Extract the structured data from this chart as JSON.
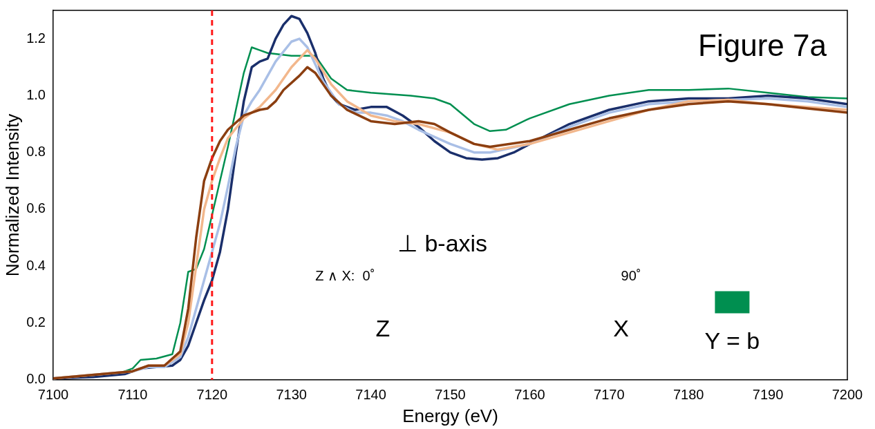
{
  "chart_data": {
    "type": "line",
    "title": "Figure 7a",
    "xlabel": "Energy (eV)",
    "ylabel": "Normalized Intensity",
    "xlim": [
      7100,
      7200
    ],
    "xticks": [
      7100,
      7110,
      7120,
      7130,
      7140,
      7150,
      7160,
      7170,
      7180,
      7190,
      7200
    ],
    "ylim": [
      0,
      1.3
    ],
    "yticks": [
      {
        "value": 0,
        "label": "0.0"
      },
      0.2,
      0.4,
      0.6,
      0.8,
      {
        "value": 1,
        "label": "1.0"
      },
      1.2
    ],
    "grid": false,
    "legend": "bottom right",
    "marker": "none",
    "line_style": "solid",
    "ref_lines": [
      {
        "axis": "x",
        "value": 7120,
        "color": "#ff1a1a",
        "line_style": "dashed"
      }
    ],
    "annotations": [
      "⊥ b-axis",
      "Z ∧ X:  0˚",
      "90˚",
      "Z",
      "X"
    ],
    "series": [
      {
        "color": "#8b3e10",
        "x": [
          7100,
          7110,
          7112,
          7114,
          7116,
          7117,
          7118,
          7119,
          7120,
          7121,
          7122,
          7124,
          7126,
          7127,
          7128,
          7129,
          7131,
          7132,
          7133,
          7135,
          7137,
          7140,
          7143,
          7146,
          7148,
          7150,
          7153,
          7155,
          7160,
          7165,
          7170,
          7175,
          7180,
          7185,
          7190,
          7195,
          7200
        ],
        "values": [
          0.005,
          0.03,
          0.05,
          0.05,
          0.1,
          0.25,
          0.5,
          0.7,
          0.78,
          0.84,
          0.88,
          0.93,
          0.95,
          0.955,
          0.98,
          1.02,
          1.07,
          1.1,
          1.08,
          1.0,
          0.95,
          0.91,
          0.9,
          0.91,
          0.9,
          0.87,
          0.83,
          0.82,
          0.84,
          0.88,
          0.92,
          0.95,
          0.97,
          0.98,
          0.97,
          0.955,
          0.94
        ]
      },
      {
        "color": "#f2b78c",
        "x": [
          7100,
          7110,
          7112,
          7114,
          7116,
          7117,
          7118,
          7119,
          7120,
          7121,
          7122,
          7124,
          7126,
          7128,
          7130,
          7132,
          7133,
          7135,
          7137,
          7140,
          7143,
          7146,
          7150,
          7153,
          7156,
          7160,
          7165,
          7170,
          7175,
          7180,
          7185,
          7190,
          7195,
          7200
        ],
        "values": [
          0.005,
          0.03,
          0.05,
          0.05,
          0.09,
          0.2,
          0.4,
          0.6,
          0.7,
          0.78,
          0.85,
          0.92,
          0.96,
          1.02,
          1.1,
          1.16,
          1.13,
          1.04,
          0.98,
          0.93,
          0.91,
          0.9,
          0.87,
          0.83,
          0.81,
          0.83,
          0.87,
          0.91,
          0.95,
          0.98,
          0.985,
          0.97,
          0.96,
          0.95
        ]
      },
      {
        "color": "#a9bfe6",
        "x": [
          7100,
          7110,
          7112,
          7114,
          7116,
          7117,
          7118,
          7119,
          7120,
          7121,
          7122,
          7123,
          7124,
          7125,
          7126,
          7128,
          7130,
          7131,
          7132,
          7134,
          7136,
          7138,
          7140,
          7142,
          7144,
          7146,
          7150,
          7153,
          7155,
          7160,
          7165,
          7170,
          7175,
          7180,
          7185,
          7190,
          7195,
          7200
        ],
        "values": [
          0.005,
          0.03,
          0.045,
          0.045,
          0.08,
          0.15,
          0.25,
          0.35,
          0.45,
          0.55,
          0.68,
          0.82,
          0.93,
          0.98,
          1.02,
          1.12,
          1.19,
          1.2,
          1.17,
          1.05,
          0.97,
          0.94,
          0.94,
          0.93,
          0.91,
          0.88,
          0.83,
          0.8,
          0.8,
          0.83,
          0.89,
          0.94,
          0.97,
          0.98,
          0.985,
          0.99,
          0.98,
          0.96
        ]
      },
      {
        "color": "#1a2f6b",
        "x": [
          7100,
          7105,
          7109,
          7111,
          7113,
          7115,
          7116,
          7117,
          7118,
          7119,
          7120,
          7121,
          7122,
          7123,
          7124,
          7125,
          7126,
          7127,
          7128,
          7129,
          7130,
          7131,
          7132,
          7133,
          7134,
          7135,
          7136,
          7138,
          7140,
          7142,
          7144,
          7146,
          7148,
          7150,
          7152,
          7154,
          7156,
          7158,
          7160,
          7165,
          7170,
          7175,
          7180,
          7185,
          7190,
          7195,
          7200
        ],
        "values": [
          0.005,
          0.01,
          0.02,
          0.04,
          0.045,
          0.05,
          0.07,
          0.12,
          0.2,
          0.28,
          0.35,
          0.45,
          0.6,
          0.8,
          0.98,
          1.1,
          1.12,
          1.13,
          1.2,
          1.25,
          1.28,
          1.27,
          1.22,
          1.15,
          1.06,
          1.0,
          0.97,
          0.95,
          0.96,
          0.96,
          0.93,
          0.89,
          0.84,
          0.8,
          0.78,
          0.775,
          0.78,
          0.8,
          0.83,
          0.9,
          0.95,
          0.98,
          0.99,
          0.99,
          1.0,
          0.99,
          0.97
        ]
      },
      {
        "name": "Y = b",
        "color": "#008f50",
        "x": [
          7100,
          7108,
          7110,
          7111,
          7113,
          7115,
          7116,
          7117,
          7118,
          7119,
          7120,
          7121,
          7122,
          7123,
          7124,
          7125,
          7126,
          7127,
          7130,
          7133,
          7134,
          7135,
          7136,
          7137,
          7140,
          7145,
          7148,
          7150,
          7153,
          7155,
          7157,
          7160,
          7165,
          7170,
          7175,
          7180,
          7185,
          7190,
          7195,
          7200
        ],
        "values": [
          0.005,
          0.02,
          0.04,
          0.07,
          0.075,
          0.09,
          0.2,
          0.38,
          0.39,
          0.46,
          0.58,
          0.7,
          0.82,
          0.95,
          1.08,
          1.17,
          1.16,
          1.15,
          1.14,
          1.14,
          1.1,
          1.06,
          1.04,
          1.02,
          1.01,
          1.0,
          0.99,
          0.97,
          0.9,
          0.875,
          0.88,
          0.92,
          0.97,
          1.0,
          1.02,
          1.02,
          1.025,
          1.01,
          0.995,
          0.99
        ]
      }
    ]
  }
}
